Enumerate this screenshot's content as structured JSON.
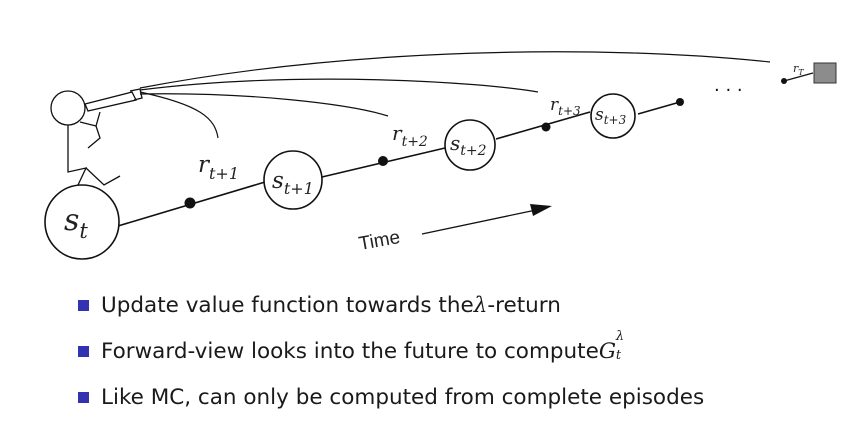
{
  "diagram": {
    "states": [
      {
        "base": "s",
        "sub": "t"
      },
      {
        "base": "s",
        "sub": "t+1"
      },
      {
        "base": "s",
        "sub": "t+2"
      },
      {
        "base": "s",
        "sub": "t+3"
      }
    ],
    "rewards": [
      {
        "base": "r",
        "sub": "t+1"
      },
      {
        "base": "r",
        "sub": "t+2"
      },
      {
        "base": "r",
        "sub": "t+3"
      },
      {
        "base": "r",
        "sub": "T"
      }
    ],
    "ellipsis": "· · ·",
    "time_label": "Time",
    "colors": {
      "line": "#111111",
      "terminal": "#8c8c8c",
      "bullet": "#3333b2"
    }
  },
  "bullets": {
    "item1": {
      "text_before": "Update value function towards the ",
      "symbol": "λ",
      "text_after": "-return"
    },
    "item2": {
      "text": "Forward-view looks into the future to compute ",
      "symbol": "G",
      "sup": "λ",
      "sub": "t"
    },
    "item3": {
      "text": "Like MC, can only be computed from complete episodes"
    }
  }
}
